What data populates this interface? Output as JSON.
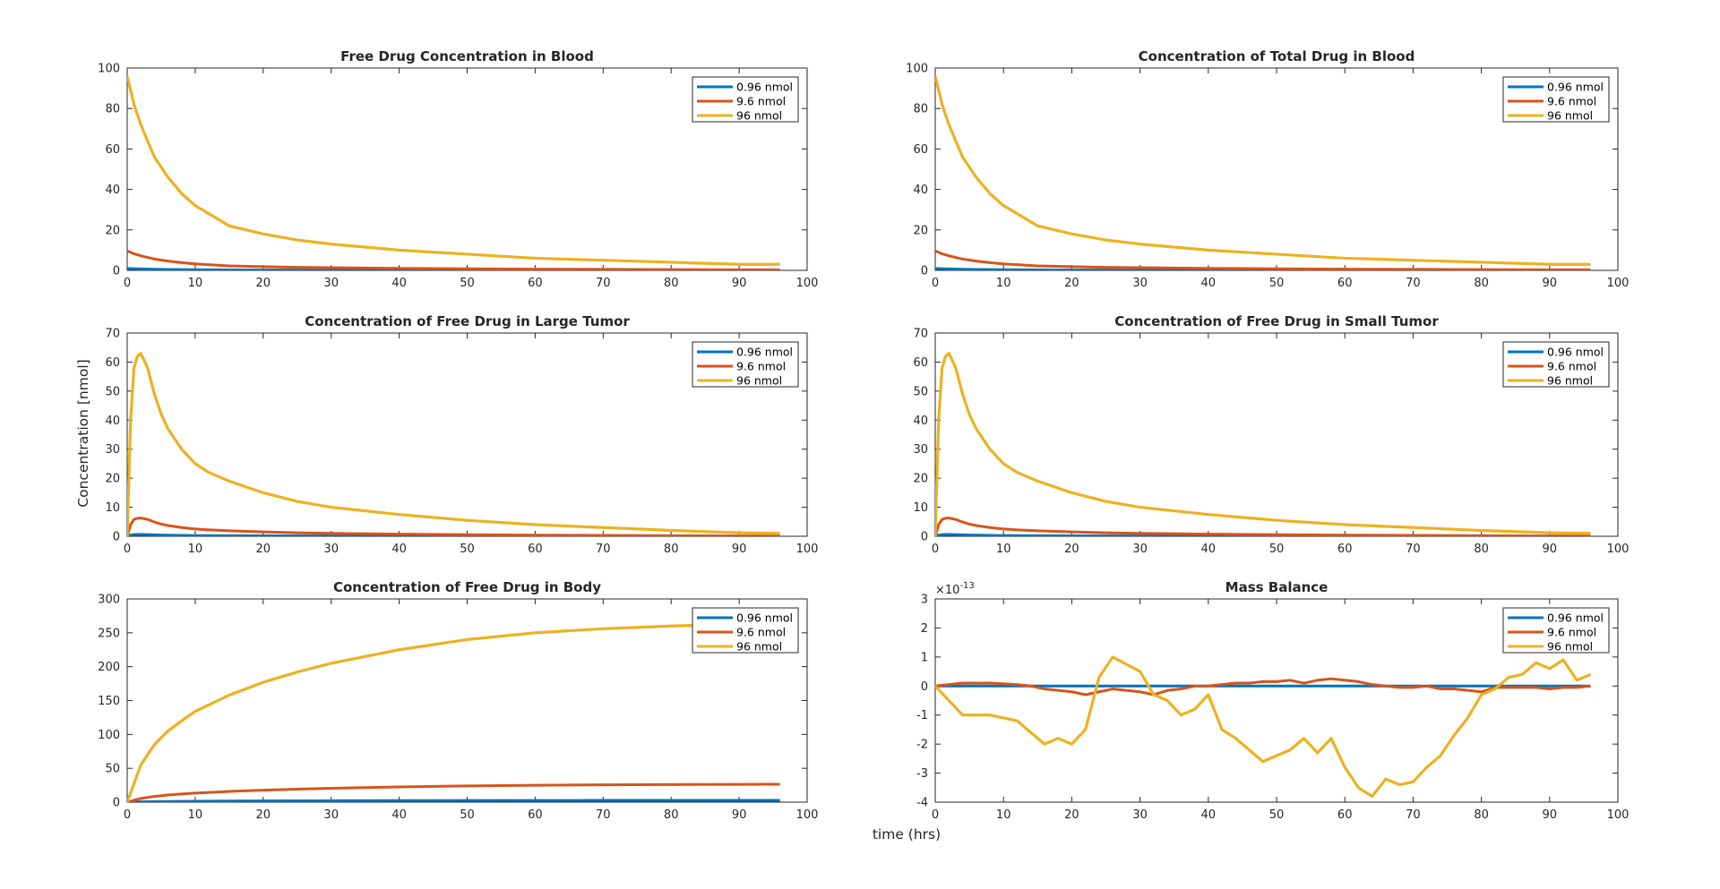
{
  "figure": {
    "xlabel": "time (hrs)",
    "ylabel": "Concentration [nmol]"
  },
  "colors": {
    "series1": "#0072BD",
    "series2": "#D95319",
    "series3": "#EDB120",
    "axes": "#262626"
  },
  "chart_data": [
    {
      "type": "line",
      "title": "Free Drug Concentration in Blood",
      "xlim": [
        0,
        100
      ],
      "ylim": [
        0,
        100
      ],
      "xticks": [
        0,
        10,
        20,
        30,
        40,
        50,
        60,
        70,
        80,
        90,
        100
      ],
      "yticks": [
        0,
        20,
        40,
        60,
        80,
        100
      ],
      "x": [
        0,
        1,
        2,
        3,
        4,
        6,
        8,
        10,
        15,
        20,
        25,
        30,
        40,
        50,
        60,
        70,
        80,
        90,
        96
      ],
      "series": [
        {
          "name": "0.96 nmol",
          "values": [
            0.96,
            0.82,
            0.72,
            0.64,
            0.56,
            0.46,
            0.38,
            0.32,
            0.22,
            0.18,
            0.15,
            0.13,
            0.1,
            0.08,
            0.06,
            0.05,
            0.04,
            0.03,
            0.03
          ]
        },
        {
          "name": "9.6 nmol",
          "values": [
            9.6,
            8.2,
            7.2,
            6.4,
            5.6,
            4.6,
            3.8,
            3.2,
            2.2,
            1.8,
            1.5,
            1.3,
            1.0,
            0.8,
            0.6,
            0.5,
            0.4,
            0.3,
            0.3
          ]
        },
        {
          "name": "96 nmol",
          "values": [
            96,
            82,
            72,
            64,
            56,
            46,
            38,
            32,
            22,
            18,
            15,
            13,
            10,
            8,
            6,
            5,
            4,
            3,
            3
          ]
        }
      ],
      "legend": "top-right"
    },
    {
      "type": "line",
      "title": "Concentration of Total Drug in Blood",
      "xlim": [
        0,
        100
      ],
      "ylim": [
        0,
        100
      ],
      "xticks": [
        0,
        10,
        20,
        30,
        40,
        50,
        60,
        70,
        80,
        90,
        100
      ],
      "yticks": [
        0,
        20,
        40,
        60,
        80,
        100
      ],
      "x": [
        0,
        1,
        2,
        3,
        4,
        6,
        8,
        10,
        15,
        20,
        25,
        30,
        40,
        50,
        60,
        70,
        80,
        90,
        96
      ],
      "series": [
        {
          "name": "0.96 nmol",
          "values": [
            0.96,
            0.82,
            0.72,
            0.64,
            0.56,
            0.46,
            0.38,
            0.32,
            0.22,
            0.18,
            0.15,
            0.13,
            0.1,
            0.08,
            0.06,
            0.05,
            0.04,
            0.03,
            0.03
          ]
        },
        {
          "name": "9.6 nmol",
          "values": [
            9.6,
            8.2,
            7.2,
            6.4,
            5.6,
            4.6,
            3.8,
            3.2,
            2.2,
            1.8,
            1.5,
            1.3,
            1.0,
            0.8,
            0.6,
            0.5,
            0.4,
            0.3,
            0.3
          ]
        },
        {
          "name": "96 nmol",
          "values": [
            96,
            82,
            72,
            64,
            56,
            46,
            38,
            32,
            22,
            18,
            15,
            13,
            10,
            8,
            6,
            5,
            4,
            3,
            3
          ]
        }
      ],
      "legend": "top-right"
    },
    {
      "type": "line",
      "title": "Concentration of Free Drug in Large Tumor",
      "xlim": [
        0,
        100
      ],
      "ylim": [
        0,
        70
      ],
      "xticks": [
        0,
        10,
        20,
        30,
        40,
        50,
        60,
        70,
        80,
        90,
        100
      ],
      "yticks": [
        0,
        10,
        20,
        30,
        40,
        50,
        60,
        70
      ],
      "x": [
        0,
        0.5,
        1,
        1.5,
        2,
        3,
        4,
        5,
        6,
        8,
        10,
        12,
        15,
        20,
        25,
        30,
        40,
        50,
        60,
        70,
        80,
        90,
        96
      ],
      "series": [
        {
          "name": "0.96 nmol",
          "values": [
            0,
            0.4,
            0.58,
            0.62,
            0.63,
            0.58,
            0.49,
            0.42,
            0.37,
            0.3,
            0.25,
            0.22,
            0.19,
            0.15,
            0.12,
            0.1,
            0.075,
            0.055,
            0.04,
            0.03,
            0.02,
            0.012,
            0.01
          ]
        },
        {
          "name": "9.6 nmol",
          "values": [
            0,
            4,
            5.8,
            6.2,
            6.3,
            5.8,
            4.9,
            4.2,
            3.7,
            3.0,
            2.5,
            2.2,
            1.9,
            1.5,
            1.2,
            1.0,
            0.75,
            0.55,
            0.4,
            0.3,
            0.2,
            0.12,
            0.1
          ]
        },
        {
          "name": "96 nmol",
          "values": [
            0,
            40,
            58,
            62,
            63,
            58,
            49,
            42,
            37,
            30,
            25,
            22,
            19,
            15,
            12,
            10,
            7.5,
            5.5,
            4,
            3,
            2,
            1.2,
            1
          ]
        }
      ],
      "legend": "top-right"
    },
    {
      "type": "line",
      "title": "Concentration of Free Drug in Small Tumor",
      "xlim": [
        0,
        100
      ],
      "ylim": [
        0,
        70
      ],
      "xticks": [
        0,
        10,
        20,
        30,
        40,
        50,
        60,
        70,
        80,
        90,
        100
      ],
      "yticks": [
        0,
        10,
        20,
        30,
        40,
        50,
        60,
        70
      ],
      "x": [
        0,
        0.5,
        1,
        1.5,
        2,
        3,
        4,
        5,
        6,
        8,
        10,
        12,
        15,
        20,
        25,
        30,
        40,
        50,
        60,
        70,
        80,
        90,
        96
      ],
      "series": [
        {
          "name": "0.96 nmol",
          "values": [
            0,
            0.4,
            0.58,
            0.62,
            0.63,
            0.58,
            0.49,
            0.42,
            0.37,
            0.3,
            0.25,
            0.22,
            0.19,
            0.15,
            0.12,
            0.1,
            0.075,
            0.055,
            0.04,
            0.03,
            0.02,
            0.012,
            0.01
          ]
        },
        {
          "name": "9.6 nmol",
          "values": [
            0,
            4,
            5.8,
            6.2,
            6.3,
            5.8,
            4.9,
            4.2,
            3.7,
            3.0,
            2.5,
            2.2,
            1.9,
            1.5,
            1.2,
            1.0,
            0.75,
            0.55,
            0.4,
            0.3,
            0.2,
            0.12,
            0.1
          ]
        },
        {
          "name": "96 nmol",
          "values": [
            0,
            40,
            58,
            62,
            63,
            58,
            49,
            42,
            37,
            30,
            25,
            22,
            19,
            15,
            12,
            10,
            7.5,
            5.5,
            4,
            3,
            2,
            1.2,
            1
          ]
        }
      ],
      "legend": "top-right"
    },
    {
      "type": "line",
      "title": "Concentration of Free Drug in Body",
      "xlim": [
        0,
        100
      ],
      "ylim": [
        0,
        300
      ],
      "xticks": [
        0,
        10,
        20,
        30,
        40,
        50,
        60,
        70,
        80,
        90,
        100
      ],
      "yticks": [
        0,
        50,
        100,
        150,
        200,
        250,
        300
      ],
      "x": [
        0,
        2,
        4,
        6,
        8,
        10,
        15,
        20,
        25,
        30,
        40,
        50,
        60,
        70,
        80,
        90,
        96
      ],
      "series": [
        {
          "name": "0.96 nmol",
          "values": [
            0,
            0.55,
            0.85,
            1.05,
            1.2,
            1.34,
            1.58,
            1.77,
            1.92,
            2.05,
            2.25,
            2.4,
            2.5,
            2.56,
            2.6,
            2.63,
            2.64
          ]
        },
        {
          "name": "9.6 nmol",
          "values": [
            0,
            5.5,
            8.5,
            10.5,
            12,
            13.4,
            15.8,
            17.7,
            19.2,
            20.5,
            22.5,
            24,
            25,
            25.6,
            26,
            26.3,
            26.4
          ]
        },
        {
          "name": "96 nmol",
          "values": [
            0,
            55,
            85,
            105,
            120,
            134,
            158,
            177,
            192,
            205,
            225,
            240,
            250,
            256,
            260,
            263,
            264
          ]
        }
      ],
      "legend": "top-right"
    },
    {
      "type": "line",
      "title": "Mass Balance",
      "exponent_label": "×10",
      "exponent_power": "-13",
      "xlim": [
        0,
        100
      ],
      "ylim": [
        -4,
        3
      ],
      "xticks": [
        0,
        10,
        20,
        30,
        40,
        50,
        60,
        70,
        80,
        90,
        100
      ],
      "yticks": [
        -4,
        -3,
        -2,
        -1,
        0,
        1,
        2,
        3
      ],
      "x": [
        0,
        4,
        8,
        12,
        14,
        16,
        18,
        20,
        22,
        24,
        26,
        30,
        32,
        34,
        36,
        38,
        40,
        42,
        44,
        46,
        48,
        50,
        52,
        54,
        56,
        58,
        60,
        62,
        64,
        66,
        68,
        70,
        72,
        74,
        76,
        78,
        80,
        82,
        84,
        86,
        88,
        90,
        92,
        94,
        96
      ],
      "series": [
        {
          "name": "0.96 nmol",
          "values": [
            0,
            0,
            0,
            0,
            0,
            0,
            0,
            0,
            0,
            0,
            0,
            0,
            0,
            0,
            0,
            0,
            0,
            0,
            0,
            0,
            0,
            0,
            0,
            0,
            0,
            0,
            0,
            0,
            0,
            0,
            0,
            0,
            0,
            0,
            0,
            0,
            0,
            0,
            0,
            0,
            0,
            0,
            0,
            0,
            0
          ]
        },
        {
          "name": "9.6 nmol",
          "values": [
            0,
            0.1,
            0.1,
            0.05,
            0,
            -0.1,
            -0.15,
            -0.2,
            -0.3,
            -0.2,
            -0.1,
            -0.2,
            -0.3,
            -0.15,
            -0.1,
            0,
            0,
            0.05,
            0.1,
            0.1,
            0.15,
            0.15,
            0.2,
            0.1,
            0.2,
            0.25,
            0.2,
            0.15,
            0.05,
            0,
            -0.05,
            -0.05,
            0,
            -0.1,
            -0.1,
            -0.15,
            -0.2,
            -0.05,
            -0.05,
            -0.05,
            -0.05,
            -0.1,
            -0.05,
            -0.05,
            0
          ]
        },
        {
          "name": "96 nmol",
          "values": [
            0,
            -1,
            -1,
            -1.2,
            -1.6,
            -2,
            -1.8,
            -2,
            -1.5,
            0.3,
            1,
            0.5,
            -0.3,
            -0.5,
            -1,
            -0.8,
            -0.3,
            -1.5,
            -1.8,
            -2.2,
            -2.6,
            -2.4,
            -2.2,
            -1.8,
            -2.3,
            -1.8,
            -2.8,
            -3.5,
            -3.8,
            -3.2,
            -3.4,
            -3.3,
            -2.8,
            -2.4,
            -1.7,
            -1.1,
            -0.3,
            -0.1,
            0.3,
            0.4,
            0.8,
            0.6,
            0.9,
            0.2,
            0.4
          ]
        }
      ],
      "legend": "top-right"
    }
  ]
}
